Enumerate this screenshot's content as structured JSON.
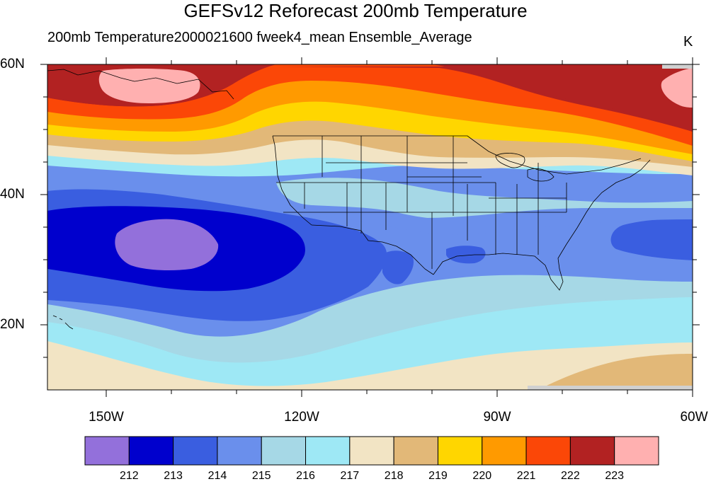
{
  "title": "GEFSv12 Reforecast 200mb Temperature",
  "subtitle": "200mb Temperature2000021600 fweek4_mean Ensemble_Average",
  "units": "K",
  "map": {
    "projection": "cylindrical-equidistant",
    "lon_range": [
      -159,
      -60
    ],
    "lat_range": [
      10,
      60
    ],
    "lat_tick_labels": [
      "60N",
      "40N",
      "20N"
    ],
    "lon_tick_labels": [
      "150W",
      "120W",
      "90W",
      "60W"
    ],
    "features": [
      "coastlines",
      "us-state-boundaries",
      "us-canada-border",
      "us-mexico-border"
    ]
  },
  "colorbar": {
    "labels": [
      "212",
      "213",
      "214",
      "215",
      "216",
      "217",
      "218",
      "219",
      "220",
      "221",
      "222",
      "223"
    ],
    "colors": [
      "#9370db",
      "#0000cd",
      "#3a5ee0",
      "#6a8fec",
      "#a6d8e6",
      "#9ee8f5",
      "#f2e4c4",
      "#e2b878",
      "#ffd600",
      "#ff9a00",
      "#fb4707",
      "#b22222",
      "#ffb0b0"
    ]
  }
}
